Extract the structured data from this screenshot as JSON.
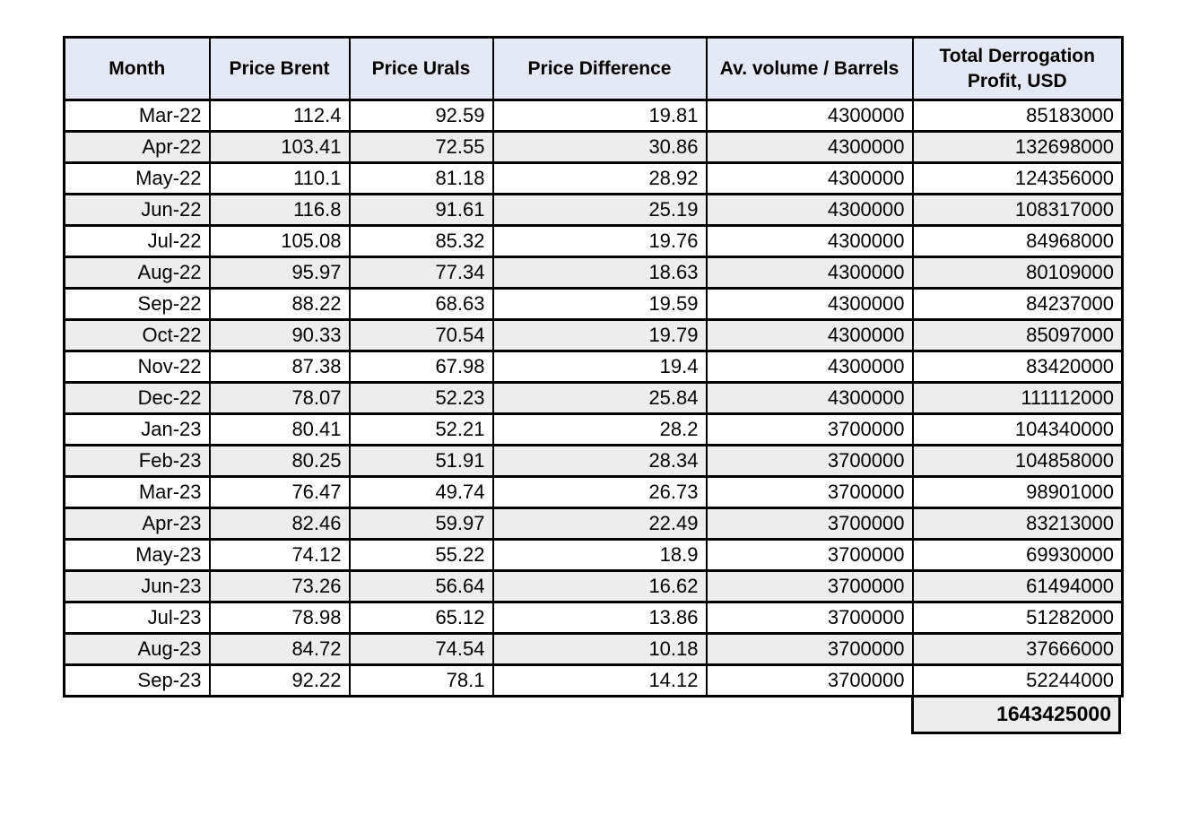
{
  "chart_data": {
    "type": "table",
    "columns": [
      "Month",
      "Price Brent",
      "Price Urals",
      "Price Difference",
      "Av. volume / Barrels",
      "Total Derrogation Profit, USD"
    ],
    "rows": [
      [
        "Mar-22",
        "112.4",
        "92.59",
        "19.81",
        "4300000",
        "85183000"
      ],
      [
        "Apr-22",
        "103.41",
        "72.55",
        "30.86",
        "4300000",
        "132698000"
      ],
      [
        "May-22",
        "110.1",
        "81.18",
        "28.92",
        "4300000",
        "124356000"
      ],
      [
        "Jun-22",
        "116.8",
        "91.61",
        "25.19",
        "4300000",
        "108317000"
      ],
      [
        "Jul-22",
        "105.08",
        "85.32",
        "19.76",
        "4300000",
        "84968000"
      ],
      [
        "Aug-22",
        "95.97",
        "77.34",
        "18.63",
        "4300000",
        "80109000"
      ],
      [
        "Sep-22",
        "88.22",
        "68.63",
        "19.59",
        "4300000",
        "84237000"
      ],
      [
        "Oct-22",
        "90.33",
        "70.54",
        "19.79",
        "4300000",
        "85097000"
      ],
      [
        "Nov-22",
        "87.38",
        "67.98",
        "19.4",
        "4300000",
        "83420000"
      ],
      [
        "Dec-22",
        "78.07",
        "52.23",
        "25.84",
        "4300000",
        "111112000"
      ],
      [
        "Jan-23",
        "80.41",
        "52.21",
        "28.2",
        "3700000",
        "104340000"
      ],
      [
        "Feb-23",
        "80.25",
        "51.91",
        "28.34",
        "3700000",
        "104858000"
      ],
      [
        "Mar-23",
        "76.47",
        "49.74",
        "26.73",
        "3700000",
        "98901000"
      ],
      [
        "Apr-23",
        "82.46",
        "59.97",
        "22.49",
        "3700000",
        "83213000"
      ],
      [
        "May-23",
        "74.12",
        "55.22",
        "18.9",
        "3700000",
        "69930000"
      ],
      [
        "Jun-23",
        "73.26",
        "56.64",
        "16.62",
        "3700000",
        "61494000"
      ],
      [
        "Jul-23",
        "78.98",
        "65.12",
        "13.86",
        "3700000",
        "51282000"
      ],
      [
        "Aug-23",
        "84.72",
        "74.54",
        "10.18",
        "3700000",
        "37666000"
      ],
      [
        "Sep-23",
        "92.22",
        "78.1",
        "14.12",
        "3700000",
        "52244000"
      ]
    ],
    "grand_total": "1643425000"
  },
  "styles": {
    "page_bg": "#ffffff",
    "header_bg": "#e4e9f6",
    "alt_row_bg": "#ededed",
    "border_color": "#000000"
  }
}
